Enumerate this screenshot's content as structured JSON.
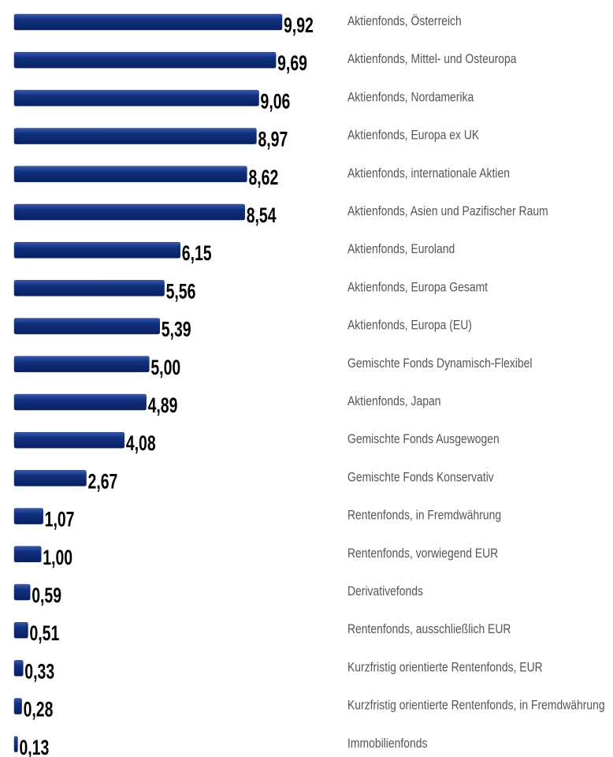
{
  "chart_data": {
    "type": "bar",
    "orientation": "horizontal",
    "color": "#10307f",
    "categories": [
      "Aktienfonds, Österreich",
      "Aktienfonds, Mittel- und Osteuropa",
      "Aktienfonds, Nordamerika",
      "Aktienfonds, Europa ex UK",
      "Aktienfonds, internationale Aktien",
      "Aktienfonds, Asien und Pazifischer Raum",
      "Aktienfonds, Euroland",
      "Aktienfonds, Europa Gesamt",
      "Aktienfonds, Europa (EU)",
      "Gemischte Fonds Dynamisch-Flexibel",
      "Aktienfonds, Japan",
      "Gemischte Fonds Ausgewogen",
      "Gemischte Fonds Konservativ",
      "Rentenfonds, in Fremdwährung",
      "Rentenfonds, vorwiegend EUR",
      "Derivativefonds",
      "Rentenfonds, ausschließlich EUR",
      "Kurzfristig orientierte Rentenfonds,  EUR",
      "Kurzfristig orientierte Rentenfonds, in Fremdwährung",
      "Immobilienfonds"
    ],
    "values": [
      9.92,
      9.69,
      9.06,
      8.97,
      8.62,
      8.54,
      6.15,
      5.56,
      5.39,
      5.0,
      4.89,
      4.08,
      2.67,
      1.07,
      1.0,
      0.59,
      0.51,
      0.33,
      0.28,
      0.13
    ],
    "value_labels": [
      "9,92",
      "9,69",
      "9,06",
      "8,97",
      "8,62",
      "8,54",
      "6,15",
      "5,56",
      "5,39",
      "5,00",
      "4,89",
      "4,08",
      "2,67",
      "1,07",
      "1,00",
      "0,59",
      "0,51",
      "0,33",
      "0,28",
      "0,13"
    ]
  }
}
